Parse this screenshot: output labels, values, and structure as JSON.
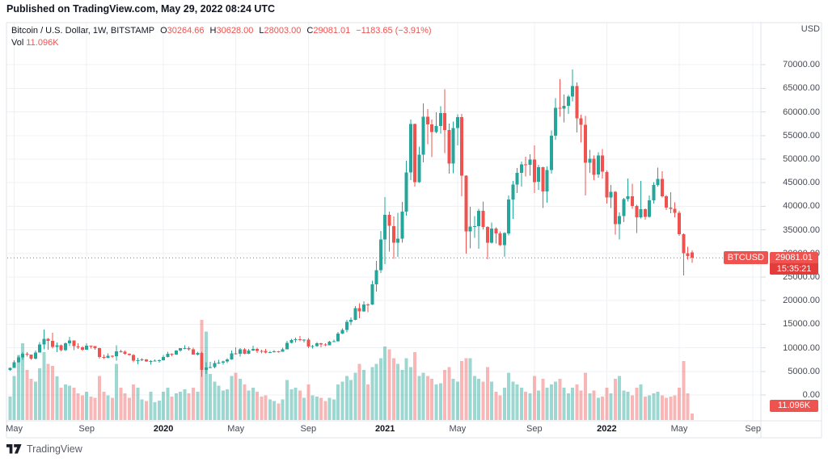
{
  "header": {
    "published_line": "Published on TradingView.com, May 29, 2022 08:24 UTC"
  },
  "legend": {
    "symbol_line": "Bitcoin / U.S. Dollar, 1W, BITSTAMP",
    "ohlc": [
      {
        "k": "O",
        "v": "30264.66"
      },
      {
        "k": "H",
        "v": "30628.00"
      },
      {
        "k": "L",
        "v": "28003.00"
      },
      {
        "k": "C",
        "v": "29081.01"
      }
    ],
    "change": "−1183.65 (−3.91%)",
    "vol_label": "Vol",
    "vol_value": "11.096K"
  },
  "price_axis": {
    "currency": "USD",
    "ticks": [
      {
        "value": 70000,
        "label": "70000.00"
      },
      {
        "value": 65000,
        "label": "65000.00"
      },
      {
        "value": 60000,
        "label": "60000.00"
      },
      {
        "value": 55000,
        "label": "55000.00"
      },
      {
        "value": 50000,
        "label": "50000.00"
      },
      {
        "value": 45000,
        "label": "45000.00"
      },
      {
        "value": 40000,
        "label": "40000.00"
      },
      {
        "value": 35000,
        "label": "35000.00"
      },
      {
        "value": 30000,
        "label": "30000.00"
      },
      {
        "value": 25000,
        "label": "25000.00"
      },
      {
        "value": 20000,
        "label": "20000.00"
      },
      {
        "value": 15000,
        "label": "15000.00"
      },
      {
        "value": 10000,
        "label": "10000.00"
      },
      {
        "value": 5000,
        "label": "5000.00"
      },
      {
        "value": 0,
        "label": "0.00"
      }
    ],
    "last_price_badge": {
      "symbol": "BTCUSD",
      "price": "29081.01",
      "countdown": "15:35:21",
      "value": 29081.01
    },
    "volume_badge": "11.096K"
  },
  "time_axis": {
    "ticks": [
      {
        "label": "May",
        "week": 1,
        "bold": false
      },
      {
        "label": "Sep",
        "week": 18,
        "bold": false
      },
      {
        "label": "2020",
        "week": 36,
        "bold": true
      },
      {
        "label": "May",
        "week": 53,
        "bold": false
      },
      {
        "label": "Sep",
        "week": 70,
        "bold": false
      },
      {
        "label": "2021",
        "week": 88,
        "bold": true
      },
      {
        "label": "May",
        "week": 105,
        "bold": false
      },
      {
        "label": "Sep",
        "week": 123,
        "bold": false
      },
      {
        "label": "2022",
        "week": 140,
        "bold": true
      },
      {
        "label": "May",
        "week": 157,
        "bold": false
      },
      {
        "label": "Sep",
        "week": 174.3,
        "bold": false
      }
    ]
  },
  "footer": {
    "brand": "TradingView"
  },
  "colors": {
    "up": "#26a69a",
    "down": "#ef5350",
    "vol_up": "rgba(38,166,154,0.45)",
    "vol_down": "rgba(239,83,80,0.42)",
    "grid": "#eef0f4",
    "frame": "#e0e3eb",
    "tick": "#d7dae0",
    "accent": "#ef5350",
    "text": "#131722"
  },
  "chart_data": {
    "type": "candlestick+volume",
    "symbol": "BTCUSD",
    "exchange": "BITSTAMP",
    "interval": "1W",
    "start_week": "2019-04-29",
    "columns": [
      "open",
      "high",
      "low",
      "close",
      "volume_K_BTC"
    ],
    "price_axis_range": [
      0,
      70000
    ],
    "last_close": 29081.01,
    "candles": [
      [
        5270,
        5850,
        5160,
        5770,
        40
      ],
      [
        5770,
        7350,
        5700,
        6970,
        75
      ],
      [
        6970,
        8320,
        6830,
        7995,
        110
      ],
      [
        7995,
        9060,
        7450,
        8730,
        130
      ],
      [
        8730,
        9096,
        8100,
        8545,
        85
      ],
      [
        8545,
        8600,
        7430,
        7690,
        70
      ],
      [
        7690,
        9390,
        7510,
        8990,
        65
      ],
      [
        8990,
        11250,
        8970,
        10730,
        88
      ],
      [
        10730,
        13880,
        9650,
        11900,
        115
      ],
      [
        11900,
        12060,
        9620,
        11450,
        95
      ],
      [
        11450,
        13200,
        9870,
        10200,
        92
      ],
      [
        10200,
        11090,
        9070,
        10530,
        74
      ],
      [
        10530,
        10700,
        9230,
        9500,
        55
      ],
      [
        9500,
        11170,
        9360,
        10970,
        60
      ],
      [
        10970,
        12325,
        10400,
        11550,
        58
      ],
      [
        11550,
        11560,
        9470,
        10310,
        55
      ],
      [
        10310,
        10950,
        9754,
        10130,
        45
      ],
      [
        10130,
        10380,
        9330,
        9590,
        42
      ],
      [
        9590,
        10950,
        9570,
        10440,
        48
      ],
      [
        10440,
        10460,
        9855,
        10330,
        40
      ],
      [
        10330,
        10350,
        9590,
        9970,
        38
      ],
      [
        9970,
        10030,
        7700,
        8050,
        75
      ],
      [
        8050,
        8540,
        7640,
        7870,
        48
      ],
      [
        7870,
        8820,
        7750,
        8320,
        42
      ],
      [
        8320,
        8430,
        7850,
        8220,
        38
      ],
      [
        8220,
        10540,
        7300,
        9230,
        95
      ],
      [
        9230,
        9590,
        8950,
        9180,
        55
      ],
      [
        9180,
        9460,
        8550,
        8770,
        45
      ],
      [
        8770,
        8800,
        8310,
        8500,
        38
      ],
      [
        8500,
        8650,
        6900,
        7300,
        60
      ],
      [
        7300,
        7870,
        6530,
        7400,
        55
      ],
      [
        7400,
        7750,
        7150,
        7510,
        35
      ],
      [
        7510,
        7600,
        7020,
        7090,
        32
      ],
      [
        7090,
        7380,
        6430,
        7150,
        48
      ],
      [
        7150,
        7520,
        7090,
        7300,
        30
      ],
      [
        7300,
        7500,
        6850,
        7350,
        33
      ],
      [
        7350,
        8470,
        7320,
        8020,
        48
      ],
      [
        8020,
        9200,
        8000,
        8700,
        55
      ],
      [
        8700,
        8780,
        8220,
        8600,
        40
      ],
      [
        8600,
        9470,
        8570,
        9380,
        45
      ],
      [
        9380,
        9960,
        9130,
        9900,
        48
      ],
      [
        9900,
        10500,
        9660,
        9920,
        52
      ],
      [
        9920,
        10290,
        9390,
        9660,
        45
      ],
      [
        9660,
        9980,
        8530,
        8600,
        55
      ],
      [
        8600,
        9190,
        8410,
        8900,
        48
      ],
      [
        8900,
        9170,
        3850,
        5300,
        170
      ],
      [
        5300,
        6900,
        4450,
        5820,
        150
      ],
      [
        5820,
        6990,
        5680,
        5870,
        78
      ],
      [
        5870,
        7300,
        5670,
        6780,
        65
      ],
      [
        6780,
        7470,
        6550,
        6880,
        58
      ],
      [
        6880,
        7290,
        6460,
        7120,
        50
      ],
      [
        7120,
        7800,
        6760,
        7540,
        52
      ],
      [
        7540,
        9460,
        7480,
        8790,
        75
      ],
      [
        8790,
        10070,
        8520,
        8720,
        80
      ],
      [
        8720,
        9940,
        8110,
        9680,
        70
      ],
      [
        9680,
        9950,
        8680,
        8710,
        60
      ],
      [
        8710,
        9740,
        8640,
        9450,
        50
      ],
      [
        9450,
        10430,
        9320,
        9750,
        55
      ],
      [
        9750,
        9990,
        8910,
        9340,
        48
      ],
      [
        9340,
        9590,
        8830,
        9300,
        40
      ],
      [
        9300,
        9780,
        8833,
        9010,
        42
      ],
      [
        9010,
        9290,
        8940,
        9070,
        35
      ],
      [
        9070,
        9480,
        9000,
        9240,
        32
      ],
      [
        9240,
        9340,
        9000,
        9170,
        28
      ],
      [
        9170,
        9990,
        9120,
        9700,
        35
      ],
      [
        9700,
        11450,
        9650,
        11080,
        68
      ],
      [
        11080,
        11910,
        10960,
        11680,
        52
      ],
      [
        11680,
        12160,
        11140,
        11850,
        55
      ],
      [
        11850,
        12480,
        11350,
        11650,
        50
      ],
      [
        11650,
        11820,
        11120,
        11710,
        38
      ],
      [
        11710,
        12070,
        9960,
        10250,
        60
      ],
      [
        10250,
        10590,
        9820,
        10340,
        42
      ],
      [
        10340,
        11180,
        10230,
        10920,
        40
      ],
      [
        10920,
        11080,
        10140,
        10720,
        38
      ],
      [
        10720,
        10950,
        10380,
        10550,
        32
      ],
      [
        10550,
        11490,
        10540,
        11300,
        38
      ],
      [
        11300,
        11730,
        11230,
        11360,
        35
      ],
      [
        11360,
        13360,
        11300,
        13030,
        60
      ],
      [
        13030,
        14100,
        12890,
        13780,
        65
      ],
      [
        13780,
        15960,
        13290,
        15480,
        75
      ],
      [
        15480,
        16480,
        14810,
        15960,
        68
      ],
      [
        15960,
        18820,
        15860,
        18410,
        80
      ],
      [
        18410,
        19450,
        16250,
        17720,
        95
      ],
      [
        17720,
        19900,
        17600,
        19170,
        85
      ],
      [
        19170,
        19420,
        17570,
        19160,
        60
      ],
      [
        19160,
        24200,
        19050,
        23470,
        90
      ],
      [
        23470,
        28420,
        21900,
        26470,
        95
      ],
      [
        26470,
        34800,
        25830,
        33000,
        105
      ],
      [
        33000,
        41950,
        27700,
        38150,
        125
      ],
      [
        38150,
        38870,
        30400,
        35830,
        120
      ],
      [
        35830,
        37850,
        28850,
        32290,
        105
      ],
      [
        32290,
        38600,
        29250,
        33100,
        95
      ],
      [
        33100,
        40955,
        32300,
        38880,
        85
      ],
      [
        38880,
        49700,
        38050,
        47180,
        105
      ],
      [
        47180,
        58350,
        45570,
        57410,
        90
      ],
      [
        57410,
        57500,
        44150,
        45140,
        115
      ],
      [
        45140,
        52640,
        44950,
        50970,
        75
      ],
      [
        50970,
        61800,
        49300,
        59000,
        80
      ],
      [
        59000,
        60600,
        53200,
        57370,
        75
      ],
      [
        57370,
        58400,
        50430,
        55780,
        70
      ],
      [
        55780,
        59890,
        55440,
        57060,
        60
      ],
      [
        57060,
        61250,
        55400,
        59740,
        62
      ],
      [
        59740,
        64850,
        51300,
        56200,
        85
      ],
      [
        56200,
        57550,
        46930,
        49050,
        90
      ],
      [
        49050,
        58000,
        47040,
        56600,
        70
      ],
      [
        56600,
        59500,
        52950,
        58880,
        65
      ],
      [
        58880,
        59590,
        42100,
        46450,
        100
      ],
      [
        46450,
        46600,
        30000,
        34700,
        105
      ],
      [
        34700,
        39900,
        31100,
        35660,
        105
      ],
      [
        35660,
        37920,
        33330,
        35800,
        75
      ],
      [
        35800,
        39480,
        31000,
        39020,
        70
      ],
      [
        39020,
        41000,
        35100,
        35600,
        65
      ],
      [
        35600,
        35750,
        28800,
        32280,
        90
      ],
      [
        32280,
        36600,
        32100,
        35300,
        65
      ],
      [
        35300,
        35500,
        32110,
        34250,
        48
      ],
      [
        34250,
        34680,
        31550,
        31780,
        42
      ],
      [
        31780,
        34500,
        29300,
        34290,
        55
      ],
      [
        34290,
        42300,
        33850,
        41460,
        80
      ],
      [
        41460,
        45340,
        37330,
        44600,
        65
      ],
      [
        44600,
        48150,
        42780,
        47100,
        60
      ],
      [
        47100,
        49500,
        44210,
        48870,
        55
      ],
      [
        48870,
        50500,
        46350,
        48780,
        48
      ],
      [
        48780,
        51000,
        46510,
        49940,
        45
      ],
      [
        49940,
        52950,
        42830,
        45160,
        75
      ],
      [
        45160,
        48825,
        43470,
        48300,
        50
      ],
      [
        48300,
        48350,
        39600,
        43160,
        70
      ],
      [
        43160,
        48500,
        40750,
        47680,
        55
      ],
      [
        47680,
        56100,
        46900,
        54960,
        60
      ],
      [
        54960,
        62900,
        54100,
        60880,
        65
      ],
      [
        60880,
        66990,
        58960,
        60690,
        70
      ],
      [
        60690,
        63720,
        57820,
        61300,
        55
      ],
      [
        61300,
        63590,
        59580,
        63290,
        45
      ],
      [
        63290,
        69000,
        62280,
        65520,
        55
      ],
      [
        65520,
        66280,
        55630,
        58620,
        60
      ],
      [
        58620,
        59450,
        53500,
        57250,
        50
      ],
      [
        57250,
        59185,
        42330,
        49200,
        80
      ],
      [
        49200,
        51960,
        47130,
        50100,
        45
      ],
      [
        50100,
        50780,
        45560,
        46700,
        50
      ],
      [
        46700,
        51460,
        46070,
        50800,
        38
      ],
      [
        50800,
        52100,
        45900,
        47300,
        40
      ],
      [
        47300,
        47600,
        40610,
        41880,
        55
      ],
      [
        41880,
        44500,
        39650,
        43100,
        45
      ],
      [
        43100,
        43200,
        34000,
        36240,
        70
      ],
      [
        36240,
        38720,
        32950,
        37920,
        75
      ],
      [
        37920,
        41800,
        36650,
        41500,
        50
      ],
      [
        41500,
        45850,
        41000,
        42100,
        48
      ],
      [
        42100,
        44750,
        39480,
        40100,
        42
      ],
      [
        40100,
        40350,
        34300,
        37710,
        55
      ],
      [
        37710,
        45400,
        37450,
        39400,
        60
      ],
      [
        39400,
        39550,
        37160,
        37790,
        40
      ],
      [
        37790,
        42320,
        37600,
        41290,
        42
      ],
      [
        41290,
        45110,
        40570,
        44540,
        45
      ],
      [
        44540,
        48200,
        44200,
        45840,
        48
      ],
      [
        45840,
        47450,
        41900,
        42160,
        42
      ],
      [
        42160,
        42420,
        39200,
        39700,
        38
      ],
      [
        39700,
        42980,
        38540,
        39450,
        40
      ],
      [
        39450,
        40800,
        37700,
        38600,
        42
      ],
      [
        38600,
        39080,
        33750,
        34060,
        55
      ],
      [
        34060,
        34230,
        25340,
        30080,
        100
      ],
      [
        30080,
        31420,
        28650,
        29440,
        45
      ],
      [
        30264.66,
        30628,
        28003,
        29081.01,
        11.096
      ]
    ]
  }
}
